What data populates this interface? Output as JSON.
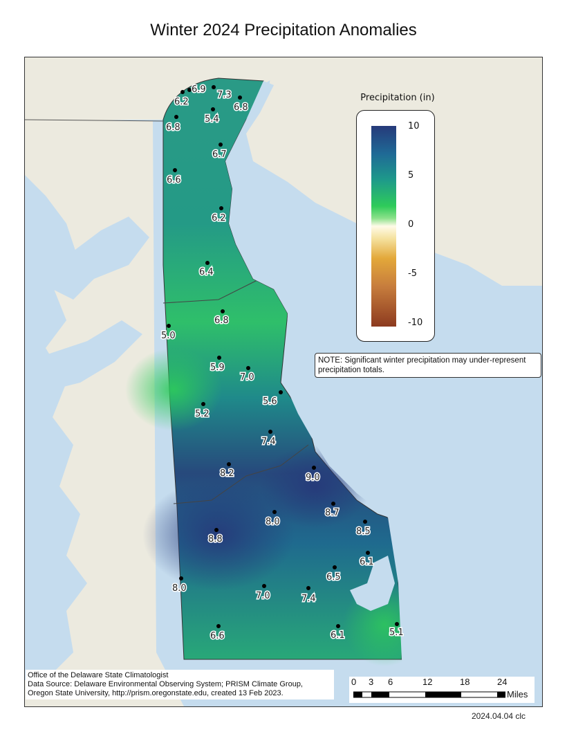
{
  "title": "Winter 2024 Precipitation Anomalies",
  "legend": {
    "title": "Precipitation (in)",
    "ticks": [
      "10",
      "5",
      "0",
      "-5",
      "-10"
    ],
    "colors": {
      "high": "#263a7a",
      "mid_high": "#2ecb5a",
      "zero": "#fffbe8",
      "mid_low": "#e3a83a",
      "low": "#8c3a1f"
    }
  },
  "note": "NOTE: Significant winter precipitation may under-represent precipitation totals.",
  "credits": {
    "line1": "Office of the Delaware State Climatologist",
    "line2": "Data Source: Delaware Environmental Observing System; PRISM Climate Group,",
    "line3": "Oregon State University, http://prism.oregonstate.edu, created 13 Feb 2023."
  },
  "scale": {
    "labels": [
      "0",
      "3",
      "6",
      "12",
      "18",
      "24"
    ],
    "unit": "Miles"
  },
  "stamp": "2024.04.04 clc",
  "stations": [
    {
      "value": "6.9"
    },
    {
      "value": "7.3"
    },
    {
      "value": "6.2"
    },
    {
      "value": "6.8"
    },
    {
      "value": "5.4"
    },
    {
      "value": "6.8"
    },
    {
      "value": "6.7"
    },
    {
      "value": "6.6"
    },
    {
      "value": "6.2"
    },
    {
      "value": "6.4"
    },
    {
      "value": "6.8"
    },
    {
      "value": "5.0"
    },
    {
      "value": "5.9"
    },
    {
      "value": "7.0"
    },
    {
      "value": "5.6"
    },
    {
      "value": "5.2"
    },
    {
      "value": "7.4"
    },
    {
      "value": "8.2"
    },
    {
      "value": "9.0"
    },
    {
      "value": "8.7"
    },
    {
      "value": "8.0"
    },
    {
      "value": "8.8"
    },
    {
      "value": "8.5"
    },
    {
      "value": "6.1"
    },
    {
      "value": "6.5"
    },
    {
      "value": "8.0"
    },
    {
      "value": "7.0"
    },
    {
      "value": "7.4"
    },
    {
      "value": "6.6"
    },
    {
      "value": "6.1"
    },
    {
      "value": "5.1"
    }
  ]
}
